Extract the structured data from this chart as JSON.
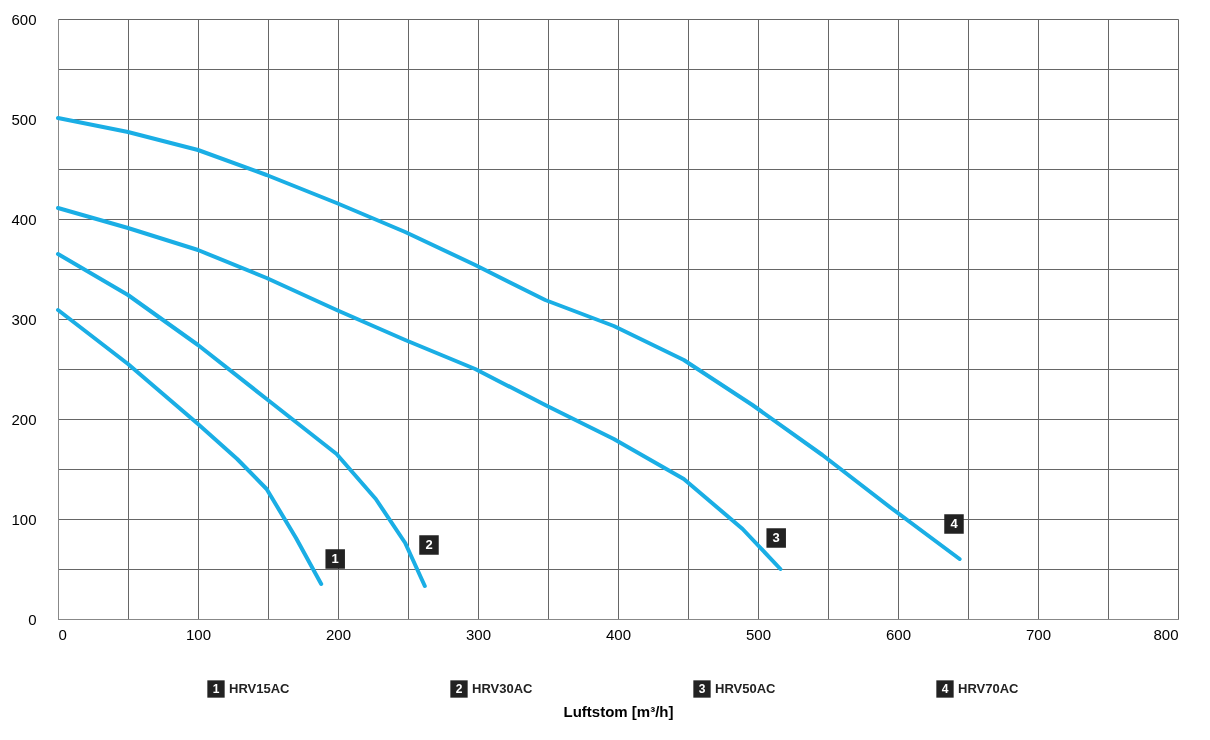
{
  "chart_data": {
    "type": "line",
    "xlabel": "Luftstom [m³/h]",
    "series": [
      {
        "color": "#1aaee5",
        "x": [
          0,
          50,
          100,
          128,
          149,
          170,
          188
        ],
        "values": [
          309,
          255,
          195,
          160,
          130,
          81,
          35
        ]
      },
      {
        "color": "#1aaee5",
        "x": [
          0,
          50,
          100,
          149,
          199,
          227,
          248,
          262
        ],
        "values": [
          365,
          324,
          274,
          220,
          165,
          120,
          76,
          33
        ]
      },
      {
        "color": "#1aaee5",
        "x": [
          0,
          50,
          100,
          149,
          199,
          248,
          298,
          348,
          397,
          447,
          489,
          516
        ],
        "values": [
          411,
          391,
          369,
          341,
          309,
          279,
          250,
          214,
          180,
          140,
          90,
          50
        ]
      },
      {
        "color": "#1aaee5",
        "x": [
          0,
          50,
          100,
          149,
          199,
          248,
          298,
          348,
          397,
          447,
          496,
          546,
          596,
          644
        ],
        "values": [
          501,
          487,
          469,
          444,
          416,
          387,
          354,
          319,
          293,
          259,
          214,
          164,
          110,
          60
        ]
      }
    ],
    "annotations": [
      {
        "text": "1",
        "x": 198,
        "y": 60
      },
      {
        "text": "2",
        "x": 265,
        "y": 74
      },
      {
        "text": "3",
        "x": 513,
        "y": 81
      },
      {
        "text": "4",
        "x": 640,
        "y": 95
      },
      "HRV15AC",
      "HRV30AC",
      "HRV50AC",
      "HRV70AC"
    ],
    "xlim": [
      0,
      800
    ],
    "ylim": [
      0,
      600
    ],
    "xticks": [
      0,
      {
        "value": 50,
        "label": null
      },
      100,
      {
        "value": 150,
        "label": null
      },
      200,
      {
        "value": 250,
        "label": null
      },
      300,
      {
        "value": 350,
        "label": null
      },
      400,
      {
        "value": 450,
        "label": null
      },
      500,
      {
        "value": 550,
        "label": null
      },
      600,
      {
        "value": 650,
        "label": null
      },
      700,
      {
        "value": 750,
        "label": null
      },
      800
    ],
    "yticks": [
      0,
      {
        "value": 50,
        "label": null
      },
      100,
      {
        "value": 150,
        "label": null
      },
      200,
      {
        "value": 250,
        "label": null
      },
      300,
      {
        "value": 350,
        "label": null
      },
      400,
      {
        "value": 450,
        "label": null
      },
      500,
      {
        "value": 550,
        "label": null
      },
      600
    ],
    "grid": true,
    "marker": "none",
    "line_style": "solid"
  }
}
